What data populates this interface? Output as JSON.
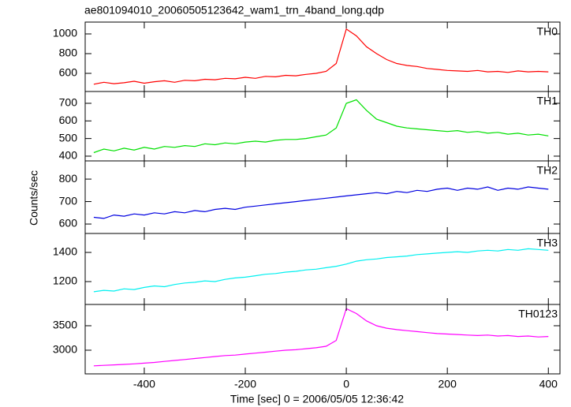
{
  "chart_data": {
    "type": "line",
    "title": "ae801094010_20060505123642_wam1_trn_4band_long.qdp",
    "xlabel": "Time [sec] 0 = 2006/05/05 12:36:42",
    "ylabel": "Counts/sec",
    "xlim": [
      -517,
      423
    ],
    "xticks": [
      -400,
      -200,
      0,
      200,
      400
    ],
    "x": [
      -500,
      -480,
      -460,
      -440,
      -420,
      -400,
      -380,
      -360,
      -340,
      -320,
      -300,
      -280,
      -260,
      -240,
      -220,
      -200,
      -180,
      -160,
      -140,
      -120,
      -100,
      -80,
      -60,
      -40,
      -20,
      0,
      20,
      40,
      60,
      80,
      100,
      120,
      140,
      160,
      180,
      200,
      220,
      240,
      260,
      280,
      300,
      320,
      340,
      360,
      380,
      400
    ],
    "series": [
      {
        "name": "TH0",
        "color": "#ff0000",
        "ylim": [
          416,
          1120
        ],
        "yticks": [
          600,
          800,
          1000
        ],
        "values": [
          490,
          510,
          495,
          505,
          520,
          500,
          515,
          525,
          510,
          530,
          525,
          540,
          535,
          550,
          545,
          560,
          550,
          570,
          565,
          580,
          575,
          590,
          600,
          620,
          700,
          1050,
          980,
          870,
          800,
          740,
          700,
          680,
          670,
          650,
          640,
          630,
          625,
          620,
          630,
          615,
          620,
          610,
          625,
          615,
          620,
          615
        ]
      },
      {
        "name": "TH1",
        "color": "#00e000",
        "ylim": [
          373,
          767
        ],
        "yticks": [
          400,
          500,
          600,
          700
        ],
        "values": [
          420,
          440,
          430,
          445,
          435,
          450,
          440,
          455,
          450,
          460,
          455,
          470,
          465,
          475,
          470,
          480,
          485,
          480,
          490,
          495,
          495,
          500,
          510,
          520,
          560,
          700,
          720,
          660,
          610,
          590,
          570,
          560,
          555,
          550,
          545,
          540,
          545,
          535,
          540,
          530,
          535,
          525,
          530,
          520,
          525,
          515
        ]
      },
      {
        "name": "TH2",
        "color": "#0000e0",
        "ylim": [
          558,
          881
        ],
        "yticks": [
          600,
          700,
          800
        ],
        "values": [
          630,
          625,
          640,
          635,
          645,
          640,
          650,
          645,
          655,
          650,
          660,
          655,
          665,
          670,
          665,
          675,
          680,
          685,
          690,
          695,
          700,
          705,
          710,
          715,
          720,
          725,
          730,
          735,
          740,
          735,
          745,
          740,
          750,
          745,
          755,
          760,
          750,
          760,
          755,
          765,
          750,
          760,
          755,
          765,
          760,
          755
        ]
      },
      {
        "name": "TH3",
        "color": "#00f0f0",
        "ylim": [
          1043,
          1530
        ],
        "yticks": [
          1200,
          1400
        ],
        "values": [
          1130,
          1140,
          1135,
          1150,
          1145,
          1160,
          1170,
          1165,
          1180,
          1190,
          1195,
          1205,
          1200,
          1215,
          1225,
          1230,
          1240,
          1250,
          1255,
          1265,
          1270,
          1280,
          1285,
          1295,
          1305,
          1320,
          1340,
          1350,
          1355,
          1365,
          1370,
          1375,
          1385,
          1390,
          1395,
          1400,
          1405,
          1400,
          1410,
          1415,
          1410,
          1420,
          1415,
          1425,
          1420,
          1415
        ]
      },
      {
        "name": "TH0123",
        "color": "#ff00ff",
        "ylim": [
          2516,
          3935
        ],
        "yticks": [
          3000,
          3500
        ],
        "values": [
          2680,
          2690,
          2700,
          2710,
          2720,
          2735,
          2750,
          2770,
          2790,
          2810,
          2830,
          2850,
          2870,
          2890,
          2900,
          2920,
          2940,
          2960,
          2980,
          3000,
          3010,
          3030,
          3050,
          3080,
          3200,
          3850,
          3750,
          3600,
          3500,
          3450,
          3420,
          3400,
          3380,
          3360,
          3340,
          3330,
          3320,
          3310,
          3300,
          3310,
          3290,
          3300,
          3280,
          3290,
          3270,
          3280
        ]
      }
    ]
  }
}
